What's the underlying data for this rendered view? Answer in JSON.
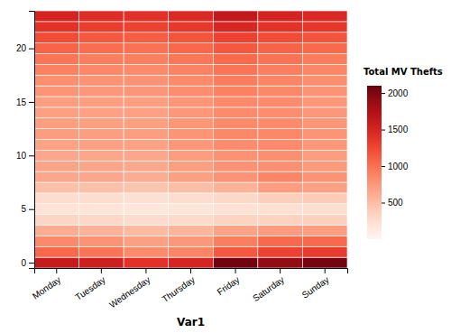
{
  "chart_data": {
    "type": "heatmap",
    "xlabel": "Var1",
    "categories": [
      "Monday",
      "Tuesday",
      "Wednesday",
      "Thursday",
      "Friday",
      "Saturday",
      "Sunday"
    ],
    "y": [
      0,
      1,
      2,
      3,
      4,
      5,
      6,
      7,
      8,
      9,
      10,
      11,
      12,
      13,
      14,
      15,
      16,
      17,
      18,
      19,
      20,
      21,
      22,
      23
    ],
    "ylim": [
      -0.5,
      23.5
    ],
    "yticks": [
      0,
      5,
      10,
      15,
      20
    ],
    "values": [
      [
        1610,
        1549,
        1391,
        1495,
        2049,
        1908,
        2038
      ],
      [
        1058,
        980,
        836,
        875,
        1148,
        1288,
        1330
      ],
      [
        850,
        780,
        700,
        750,
        920,
        1050,
        1050
      ],
      [
        620,
        580,
        530,
        560,
        680,
        730,
        720
      ],
      [
        330,
        310,
        275,
        295,
        345,
        360,
        370
      ],
      [
        210,
        195,
        175,
        190,
        225,
        250,
        260
      ],
      [
        270,
        265,
        240,
        270,
        310,
        390,
        410
      ],
      [
        490,
        490,
        460,
        510,
        580,
        720,
        700
      ],
      [
        650,
        650,
        620,
        700,
        780,
        870,
        780
      ],
      [
        670,
        660,
        645,
        710,
        790,
        810,
        740
      ],
      [
        650,
        655,
        650,
        720,
        790,
        810,
        720
      ],
      [
        680,
        690,
        680,
        750,
        830,
        840,
        750
      ],
      [
        720,
        710,
        705,
        775,
        855,
        855,
        775
      ],
      [
        710,
        700,
        700,
        765,
        850,
        840,
        760
      ],
      [
        700,
        690,
        690,
        750,
        835,
        820,
        748
      ],
      [
        705,
        705,
        710,
        760,
        845,
        825,
        750
      ],
      [
        770,
        755,
        760,
        815,
        900,
        855,
        780
      ],
      [
        810,
        785,
        785,
        840,
        925,
        870,
        805
      ],
      [
        900,
        855,
        840,
        885,
        980,
        915,
        860
      ],
      [
        970,
        920,
        905,
        960,
        1040,
        985,
        930
      ],
      [
        1080,
        1025,
        1000,
        1055,
        1155,
        1085,
        1040
      ],
      [
        1220,
        1155,
        1120,
        1175,
        1295,
        1220,
        1180
      ],
      [
        1390,
        1315,
        1280,
        1345,
        1480,
        1385,
        1350
      ],
      [
        1510,
        1430,
        1395,
        1455,
        1620,
        1510,
        1465
      ]
    ],
    "legend_title": "Total MV Thefts",
    "color_range": [
      0,
      2100
    ],
    "color_ticks": [
      500,
      1000,
      1500,
      2000
    ]
  }
}
